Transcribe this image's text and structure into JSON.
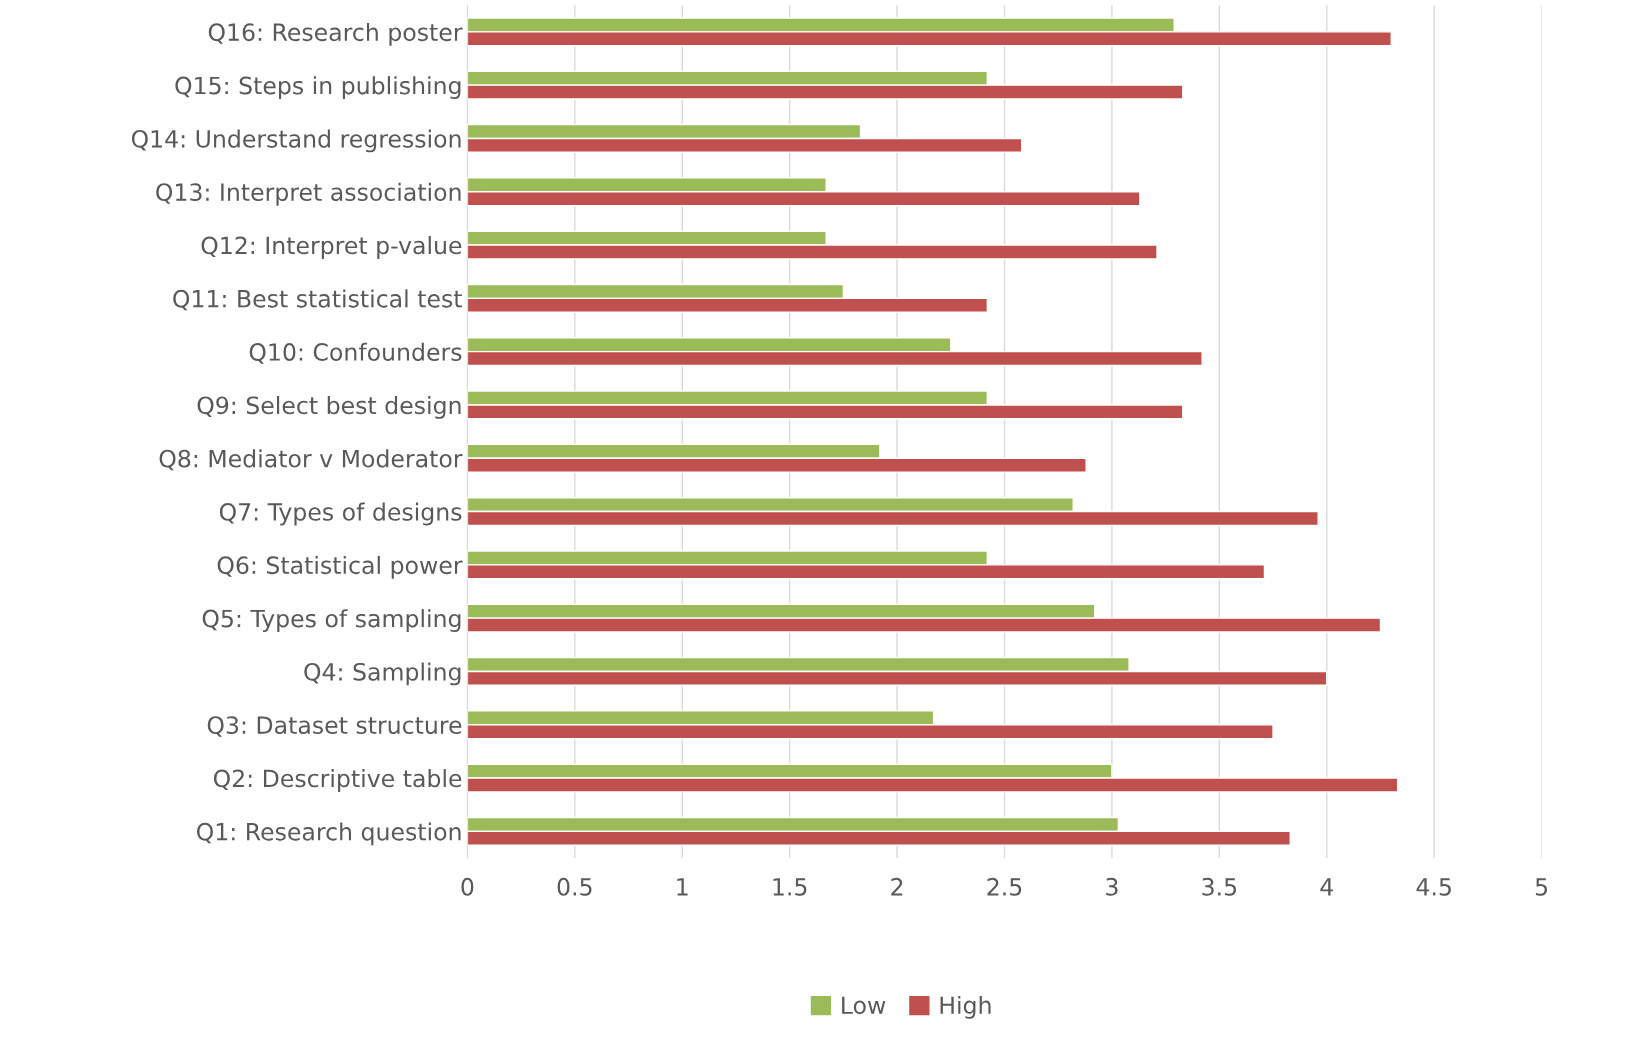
{
  "chart_data": {
    "type": "bar",
    "orientation": "horizontal",
    "categories": [
      "Q16: Research poster",
      "Q15: Steps in publishing",
      "Q14: Understand regression",
      "Q13: Interpret association",
      "Q12: Interpret p-value",
      "Q11: Best statistical test",
      "Q10: Confounders",
      "Q9: Select best design",
      "Q8: Mediator v Moderator",
      "Q7: Types of designs",
      "Q6: Statistical power",
      "Q5: Types of sampling",
      "Q4: Sampling",
      "Q3: Dataset structure",
      "Q2: Descriptive table",
      "Q1: Research question"
    ],
    "series": [
      {
        "name": "Low",
        "color": "#9bbb59",
        "values": [
          3.29,
          2.42,
          1.83,
          1.67,
          1.67,
          1.75,
          2.25,
          2.42,
          1.92,
          2.82,
          2.42,
          2.92,
          3.08,
          2.17,
          3.0,
          3.03
        ]
      },
      {
        "name": "High",
        "color": "#c0504d",
        "values": [
          4.3,
          3.33,
          2.58,
          3.13,
          3.21,
          2.42,
          3.42,
          3.33,
          2.88,
          3.96,
          3.71,
          4.25,
          4.0,
          3.75,
          4.33,
          3.83
        ]
      }
    ],
    "xlim": [
      0,
      5
    ],
    "xticks": [
      0,
      0.5,
      1,
      1.5,
      2,
      2.5,
      3,
      3.5,
      4,
      4.5,
      5
    ],
    "grid": "x",
    "legend": "bottom"
  }
}
